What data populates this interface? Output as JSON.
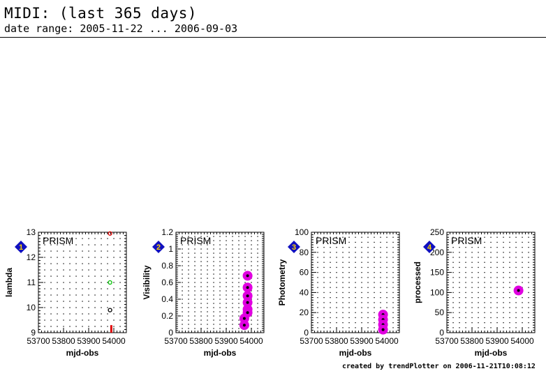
{
  "header": {
    "title": "MIDI: (last 365 days)",
    "subtitle": "date range: 2005-11-22 ... 2006-09-03"
  },
  "footer": {
    "credit": "created by trendPlotter on 2006-11-21T10:08:12"
  },
  "colors": {
    "badge": "#1010c0",
    "badge_text": "#ffd400",
    "magenta": "#e000e0",
    "red": "#e00000",
    "green": "#00c000",
    "black": "#000000"
  },
  "chart_data": [
    {
      "type": "scatter",
      "index": "1",
      "annotation": "PRISM",
      "xlabel": "mjd-obs",
      "ylabel": "lambda",
      "xlim": [
        53700,
        54050
      ],
      "ylim": [
        9,
        13
      ],
      "xticks": [
        "53700",
        "53800",
        "53900",
        "54000"
      ],
      "xtick_values": [
        53700,
        53800,
        53900,
        54000
      ],
      "yticks": [
        "9",
        "10",
        "11",
        "12",
        "13"
      ],
      "ytick_values": [
        9,
        10,
        11,
        12,
        13
      ],
      "grid": true,
      "points": [
        {
          "x": 53985,
          "y": 12.95,
          "style": "ring",
          "color": "#e00000"
        },
        {
          "x": 53985,
          "y": 11.0,
          "style": "ring",
          "color": "#00c000"
        },
        {
          "x": 53985,
          "y": 9.9,
          "style": "ring",
          "color": "#000000"
        },
        {
          "x": 53990,
          "y": 9.3,
          "style": "bar",
          "color": "#e00000"
        }
      ]
    },
    {
      "type": "scatter",
      "index": "2",
      "annotation": "PRISM",
      "xlabel": "mjd-obs",
      "ylabel": "Visibility",
      "xlim": [
        53700,
        54050
      ],
      "ylim": [
        0,
        1.2
      ],
      "xticks": [
        "53700",
        "53800",
        "53900",
        "54000"
      ],
      "xtick_values": [
        53700,
        53800,
        53900,
        54000
      ],
      "yticks": [
        "0",
        "0.2",
        "0.4",
        "0.6",
        "0.8",
        "1",
        "1.2"
      ],
      "ytick_values": [
        0,
        0.2,
        0.4,
        0.6,
        0.8,
        1.0,
        1.2
      ],
      "grid": true,
      "points": [
        {
          "x": 53985,
          "y": 0.68,
          "style": "blob",
          "color": "#e000e0"
        },
        {
          "x": 53985,
          "y": 0.54,
          "style": "blob",
          "color": "#e000e0"
        },
        {
          "x": 53985,
          "y": 0.44,
          "style": "blob",
          "color": "#e000e0"
        },
        {
          "x": 53985,
          "y": 0.36,
          "style": "blob",
          "color": "#e000e0"
        },
        {
          "x": 53985,
          "y": 0.28,
          "style": "blob",
          "color": "#e000e0"
        },
        {
          "x": 53985,
          "y": 0.24,
          "style": "blob",
          "color": "#e000e0"
        },
        {
          "x": 53972,
          "y": 0.17,
          "style": "blob",
          "color": "#e000e0"
        },
        {
          "x": 53972,
          "y": 0.09,
          "style": "blob",
          "color": "#e000e0"
        }
      ]
    },
    {
      "type": "scatter",
      "index": "3",
      "annotation": "PRISM",
      "xlabel": "mjd-obs",
      "ylabel": "Photometry",
      "xlim": [
        53700,
        54050
      ],
      "ylim": [
        0,
        100
      ],
      "xticks": [
        "53700",
        "53800",
        "53900",
        "54000"
      ],
      "xtick_values": [
        53700,
        53800,
        53900,
        54000
      ],
      "yticks": [
        "0",
        "20",
        "40",
        "60",
        "80",
        "100"
      ],
      "ytick_values": [
        0,
        20,
        40,
        60,
        80,
        100
      ],
      "grid": true,
      "points": [
        {
          "x": 53985,
          "y": 18,
          "style": "blob",
          "color": "#e000e0"
        },
        {
          "x": 53985,
          "y": 13,
          "style": "blob",
          "color": "#e000e0"
        },
        {
          "x": 53985,
          "y": 8,
          "style": "blob",
          "color": "#e000e0"
        },
        {
          "x": 53985,
          "y": 3,
          "style": "blob",
          "color": "#e000e0"
        }
      ]
    },
    {
      "type": "scatter",
      "index": "4",
      "annotation": "PRISM",
      "xlabel": "mjd-obs",
      "ylabel": "processed",
      "xlim": [
        53700,
        54050
      ],
      "ylim": [
        0,
        250
      ],
      "xticks": [
        "53700",
        "53800",
        "53900",
        "54000"
      ],
      "xtick_values": [
        53700,
        53800,
        53900,
        54000
      ],
      "yticks": [
        "0",
        "50",
        "100",
        "150",
        "200",
        "250"
      ],
      "ytick_values": [
        0,
        50,
        100,
        150,
        200,
        250
      ],
      "grid": true,
      "points": [
        {
          "x": 53985,
          "y": 105,
          "style": "blob",
          "color": "#e000e0"
        }
      ]
    }
  ]
}
